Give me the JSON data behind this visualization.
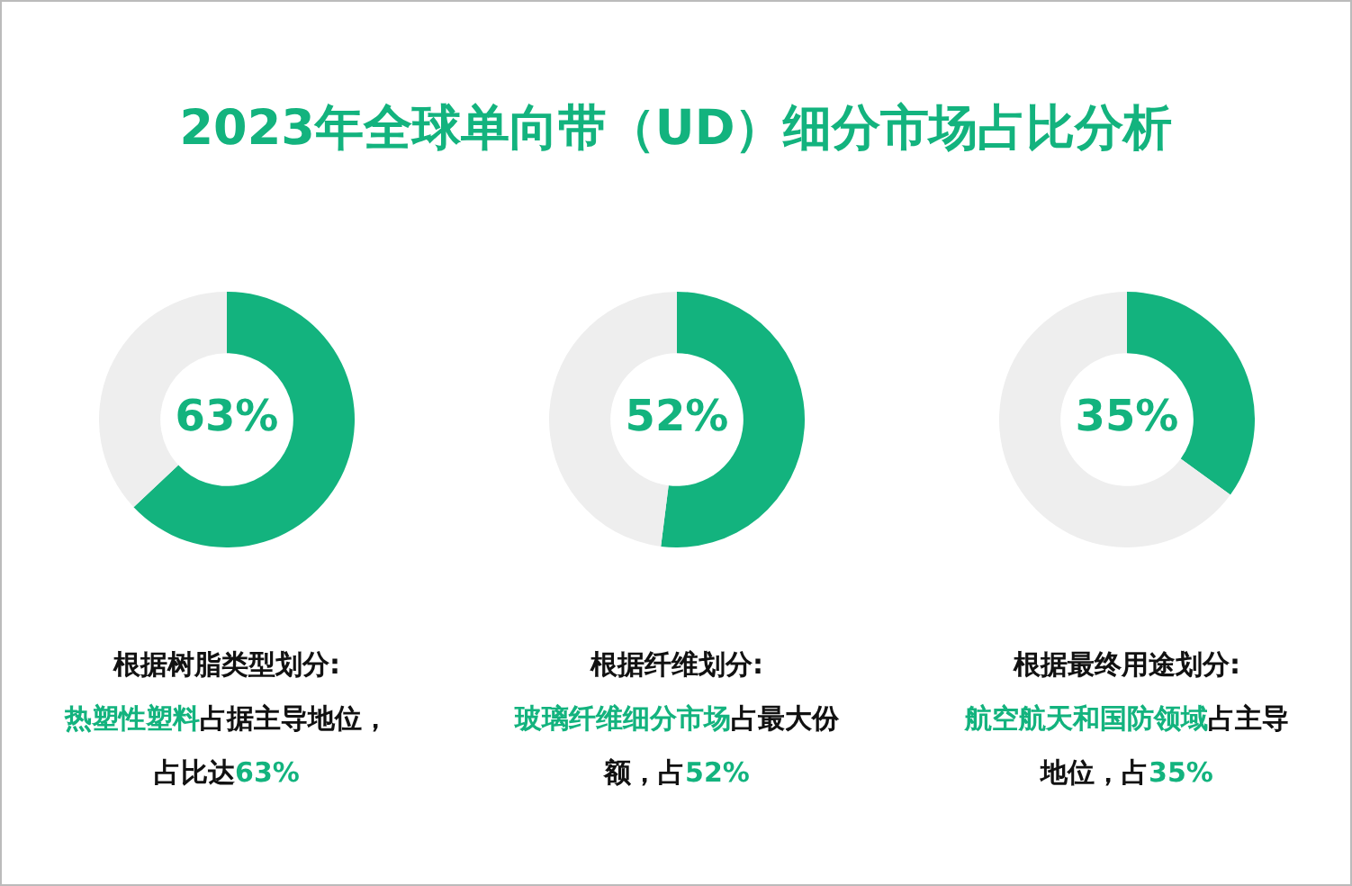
{
  "chart_data": [
    {
      "type": "donut",
      "title": "2023年全球单向带（UD）细分市场占比分析",
      "categories": [
        null,
        null
      ],
      "values": [
        63,
        37
      ],
      "colors": [
        "#13b37e",
        "#eeeeee"
      ],
      "value_labels": [
        "63%",
        null
      ],
      "legend": false,
      "annotations": [
        "根据树脂类型划分:",
        "热塑性塑料",
        "占据主导地位，占比达",
        "63%"
      ]
    },
    {
      "type": "donut",
      "categories": [
        null,
        null
      ],
      "values": [
        52,
        48
      ],
      "colors": [
        "#13b37e",
        "#eeeeee"
      ],
      "value_labels": [
        "52%",
        null
      ],
      "legend": false,
      "annotations": [
        "根据纤维划分:",
        "玻璃纤维细分市场",
        "占最大份额，占",
        "52%"
      ]
    },
    {
      "type": "donut",
      "categories": [
        null,
        null
      ],
      "values": [
        35,
        65
      ],
      "colors": [
        "#13b37e",
        "#eeeeee"
      ],
      "value_labels": [
        "35%",
        null
      ],
      "legend": false,
      "annotations": [
        "根据最终用途划分:",
        "航空航天和国防领域",
        "占主导地位，占",
        "35%"
      ]
    }
  ]
}
